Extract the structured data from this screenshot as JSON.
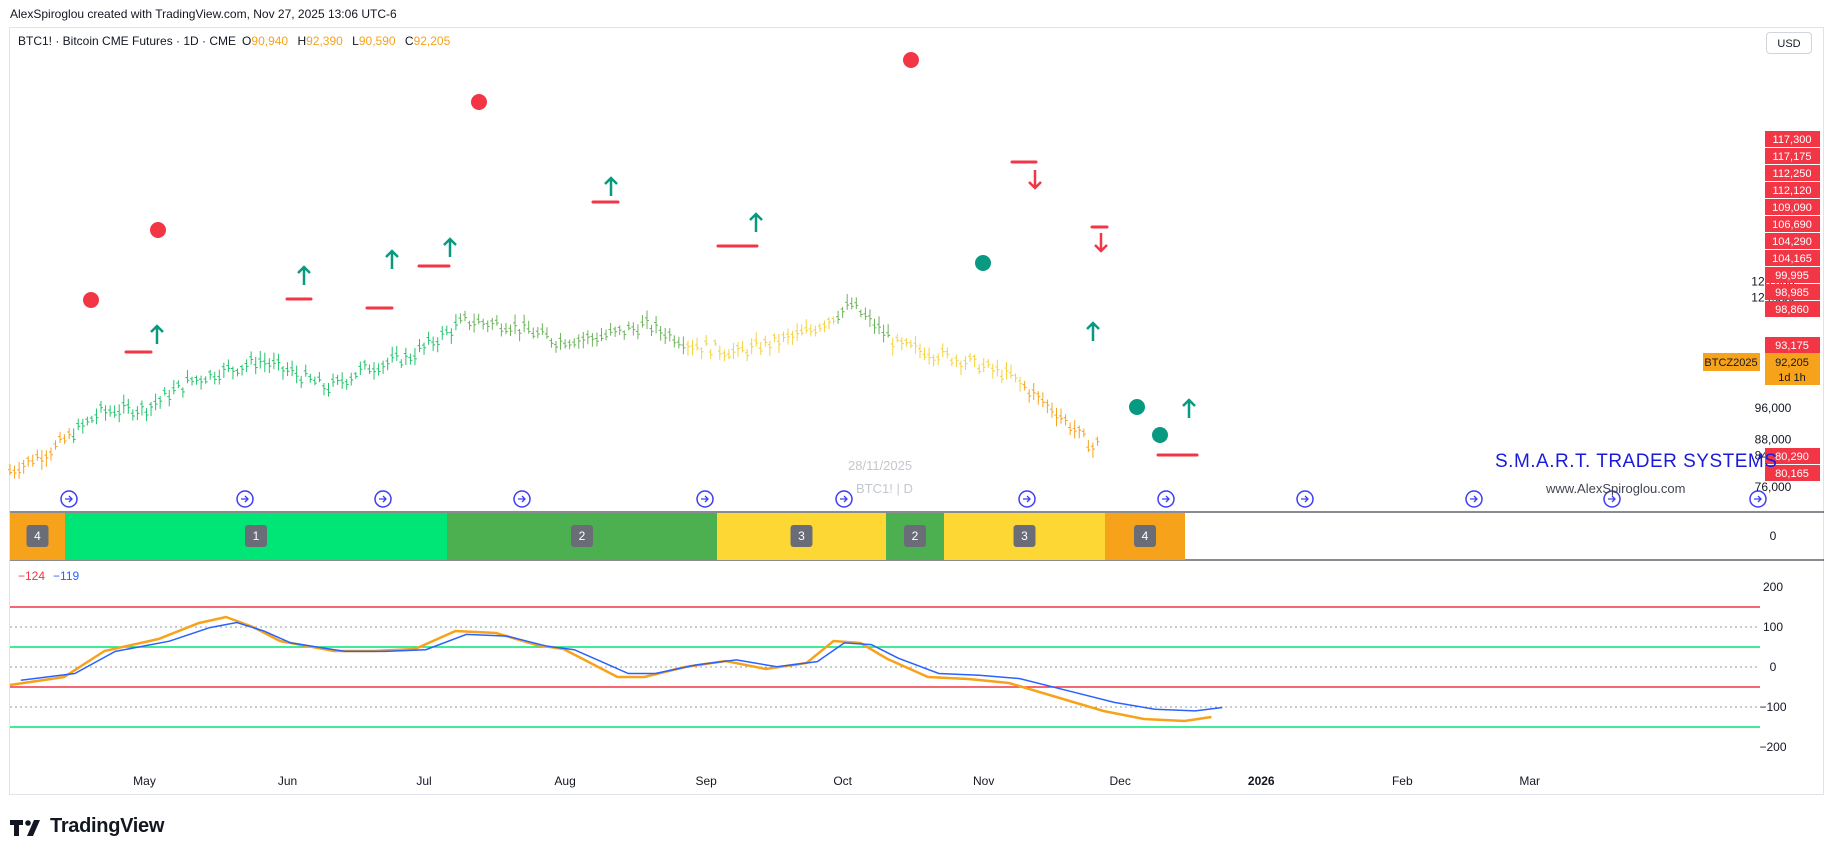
{
  "header": {
    "attribution": "AlexSpiroglou created with TradingView.com, Nov 27, 2025 13:06 UTC-6"
  },
  "symbol": {
    "name": "BTC1! · Bitcoin CME Futures · 1D · CME",
    "o_label": "O",
    "o_value": "90,940",
    "h_label": "H",
    "h_value": "92,390",
    "l_label": "L",
    "l_value": "90,590",
    "c_label": "C",
    "c_value": "92,205"
  },
  "currency_button": "USD",
  "brand": {
    "name": "S.M.A.R.T. TRADER SYSTEMS",
    "site": "www.AlexSpiroglou.com"
  },
  "watermark": {
    "date": "28/11/2025",
    "symbol": "BTC1! | D"
  },
  "indicator": {
    "value_a": "−124",
    "value_b": "−119"
  },
  "footer_logo": "TradingView",
  "colors": {
    "up": "#22c36b",
    "green_dark": "#4caf50",
    "yellow": "#f5d23c",
    "orange": "#f7a21b",
    "red": "#f23645",
    "teal": "#089981",
    "blue": "#2962ff"
  },
  "chart_data": {
    "type": "bar",
    "price_axis": {
      "ticks": [
        76000,
        84000,
        88000,
        96000,
        124000,
        128000
      ]
    },
    "price_labels": [
      {
        "text": "117,300",
        "value": 117300
      },
      {
        "text": "117,175",
        "value": 117175
      },
      {
        "text": "112,250",
        "value": 112250
      },
      {
        "text": "112,120",
        "value": 112120
      },
      {
        "text": "109,090",
        "value": 109090
      },
      {
        "text": "106,690",
        "value": 106690
      },
      {
        "text": "104,290",
        "value": 104290
      },
      {
        "text": "104,165",
        "value": 104165
      },
      {
        "text": "99,995",
        "value": 99995
      },
      {
        "text": "98,985",
        "value": 98985
      },
      {
        "text": "98,860",
        "value": 98860
      },
      {
        "text": "93,175",
        "value": 93175
      },
      {
        "text": "80,290",
        "value": 80290
      },
      {
        "text": "80,165",
        "value": 80165
      }
    ],
    "current_price": {
      "symbol": "BTCZ2025",
      "price": "92,205",
      "countdown": "1d 1h",
      "value": 92205
    },
    "x_axis": [
      "May",
      "Jun",
      "Jul",
      "Aug",
      "Sep",
      "Oct",
      "Nov",
      "Dec",
      "2026",
      "Feb",
      "Mar"
    ],
    "x_axis_bold": [
      "2026"
    ],
    "cycle_phases": [
      {
        "label": "4",
        "color": "#f7a21b"
      },
      {
        "label": "1",
        "color": "#00e676"
      },
      {
        "label": "2",
        "color": "#4caf50"
      },
      {
        "label": "3",
        "color": "#fdd835"
      },
      {
        "label": "2",
        "color": "#4caf50"
      },
      {
        "label": "3",
        "color": "#fdd835"
      },
      {
        "label": "4",
        "color": "#f7a21b"
      }
    ],
    "phase_pane_axis": "0",
    "oscillator_axis": {
      "ticks": [
        "200",
        "100",
        "0",
        "−100",
        "−200"
      ],
      "levels": [
        200,
        100,
        0,
        -100,
        -200
      ]
    },
    "candle_segments": [
      {
        "from": "Apr 1",
        "to": "Apr 15",
        "phase": "4",
        "open": 80000,
        "close": 86000
      },
      {
        "from": "Apr 15",
        "to": "Jul 9",
        "phase": "1",
        "open": 86000,
        "close": 112000
      },
      {
        "from": "Jul 9",
        "to": "Aug 28",
        "phase": "2",
        "open": 112000,
        "close": 110000
      },
      {
        "from": "Aug 28",
        "to": "Sep 30",
        "phase": "3",
        "open": 110000,
        "close": 114000
      },
      {
        "from": "Sep 30",
        "to": "Oct 12",
        "phase": "2",
        "open": 114000,
        "close": 112000
      },
      {
        "from": "Oct 12",
        "to": "Nov 10",
        "phase": "3",
        "open": 112000,
        "close": 104000
      },
      {
        "from": "Nov 10",
        "to": "Nov 27",
        "phase": "4",
        "open": 104000,
        "close": 92205
      }
    ]
  }
}
